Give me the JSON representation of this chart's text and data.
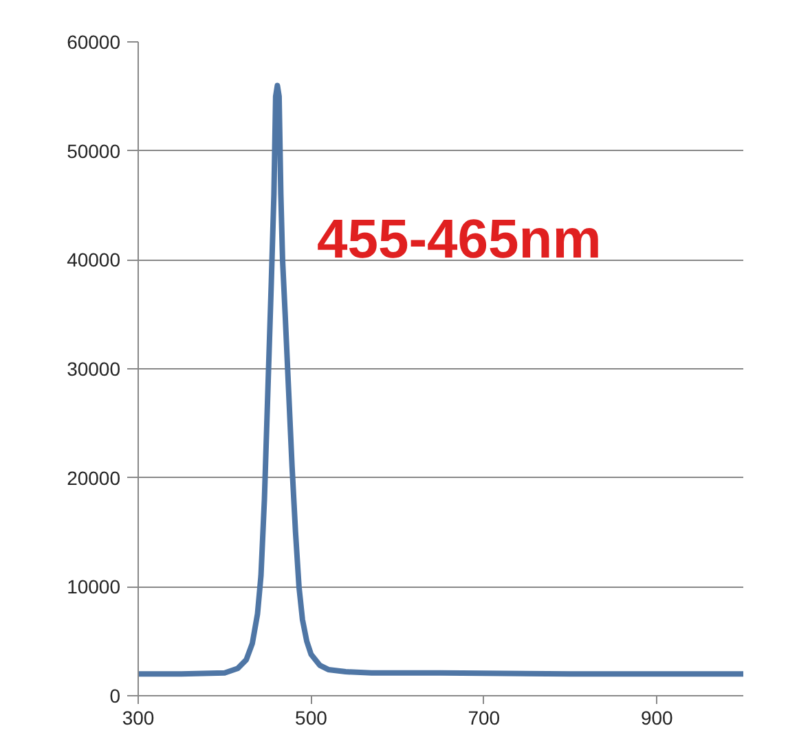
{
  "chart_data": {
    "type": "line",
    "x": [
      300,
      350,
      400,
      415,
      425,
      432,
      438,
      442,
      446,
      450,
      454,
      457,
      459,
      461,
      463,
      465,
      467,
      470,
      474,
      478,
      482,
      486,
      490,
      495,
      500,
      510,
      520,
      540,
      570,
      650,
      800,
      1000
    ],
    "series": [
      {
        "color": "#4f76a5",
        "values": [
          2000,
          2000,
          2100,
          2500,
          3300,
          4800,
          7500,
          11000,
          18000,
          28000,
          38000,
          46000,
          55000,
          56000,
          55000,
          46000,
          40000,
          35000,
          28000,
          21000,
          15000,
          10000,
          7000,
          5000,
          3800,
          2800,
          2400,
          2200,
          2100,
          2100,
          2000,
          2000
        ]
      }
    ],
    "xlim": [
      300,
      1000
    ],
    "ylim": [
      0,
      60000
    ],
    "xticks": [
      300,
      500,
      700,
      900
    ],
    "yticks": [
      0,
      10000,
      20000,
      30000,
      40000,
      50000,
      60000
    ],
    "grid": "y",
    "line_style": "solid",
    "annotations": [
      "455-465nm"
    ]
  }
}
